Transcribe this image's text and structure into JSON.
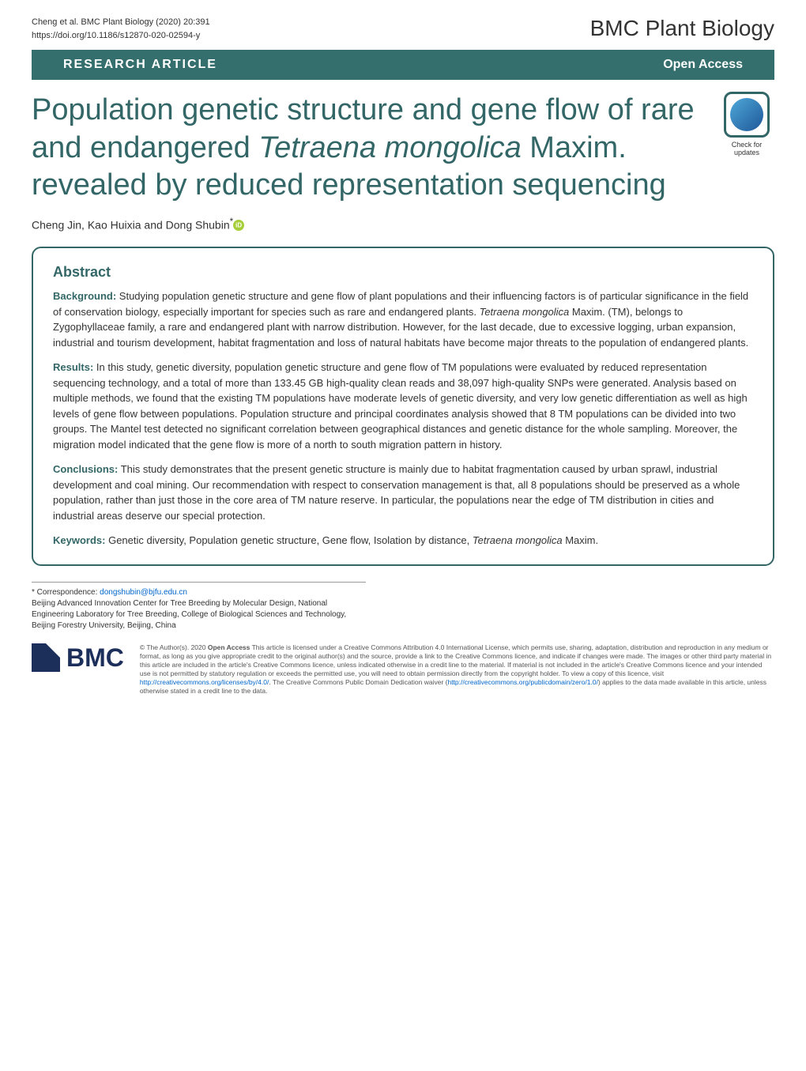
{
  "header": {
    "citation_line1": "Cheng et al. BMC Plant Biology        (2020) 20:391",
    "citation_line2": "https://doi.org/10.1186/s12870-020-02594-y",
    "journal_name": "BMC Plant Biology"
  },
  "article_type_bar": {
    "type": "RESEARCH ARTICLE",
    "access": "Open Access"
  },
  "title": {
    "text_parts": {
      "p1": "Population genetic structure and gene flow of rare and endangered ",
      "em1": "Tetraena mongolica",
      "p2": " Maxim. revealed by reduced representation sequencing"
    }
  },
  "check_updates": {
    "label": "Check for updates"
  },
  "authors": {
    "text": "Cheng Jin, Kao Huixia and Dong Shubin",
    "corresponding_marker": "*"
  },
  "abstract": {
    "heading": "Abstract",
    "background": {
      "label": "Background:",
      "p1": " Studying population genetic structure and gene flow of plant populations and their influencing factors is of particular significance in the field of conservation biology, especially important for species such as rare and endangered plants. ",
      "em1": "Tetraena mongolica",
      "p2": " Maxim. (TM), belongs to Zygophyllaceae family, a rare and endangered plant with narrow distribution. However, for the last decade, due to excessive logging, urban expansion, industrial and tourism development, habitat fragmentation and loss of natural habitats have become major threats to the population of endangered plants."
    },
    "results": {
      "label": "Results:",
      "text": " In this study, genetic diversity, population genetic structure and gene flow of TM populations were evaluated by reduced representation sequencing technology, and a total of more than 133.45 GB high-quality clean reads and 38,097 high-quality SNPs were generated. Analysis based on multiple methods, we found that the existing TM populations have moderate levels of genetic diversity, and very low genetic differentiation as well as high levels of gene flow between populations. Population structure and principal coordinates analysis showed that 8 TM populations can be divided into two groups. The Mantel test detected no significant correlation between geographical distances and genetic distance for the whole sampling. Moreover, the migration model indicated that the gene flow is more of a north to south migration pattern in history."
    },
    "conclusions": {
      "label": "Conclusions:",
      "text": " This study demonstrates that the present genetic structure is mainly due to habitat fragmentation caused by urban sprawl, industrial development and coal mining. Our recommendation with respect to conservation management is that, all 8 populations should be preserved as a whole population, rather than just those in the core area of TM nature reserve. In particular, the populations near the edge of TM distribution in cities and industrial areas deserve our special protection."
    },
    "keywords": {
      "label": "Keywords:",
      "p1": " Genetic diversity, Population genetic structure, Gene flow, Isolation by distance, ",
      "em1": "Tetraena mongolica",
      "p2": " Maxim."
    }
  },
  "footer": {
    "correspondence": {
      "label": "* Correspondence: ",
      "email": "dongshubin@bjfu.edu.cn",
      "affiliation": "Beijing Advanced Innovation Center for Tree Breeding by Molecular Design, National Engineering Laboratory for Tree Breeding, College of Biological Sciences and Technology, Beijing Forestry University, Beijing, China"
    },
    "bmc_logo": {
      "text": "BMC"
    },
    "license": {
      "p1": "© The Author(s). 2020 ",
      "bold1": "Open Access",
      "p2": " This article is licensed under a Creative Commons Attribution 4.0 International License, which permits use, sharing, adaptation, distribution and reproduction in any medium or format, as long as you give appropriate credit to the original author(s) and the source, provide a link to the Creative Commons licence, and indicate if changes were made. The images or other third party material in this article are included in the article's Creative Commons licence, unless indicated otherwise in a credit line to the material. If material is not included in the article's Creative Commons licence and your intended use is not permitted by statutory regulation or exceeds the permitted use, you will need to obtain permission directly from the copyright holder. To view a copy of this licence, visit ",
      "link1": "http://creativecommons.org/licenses/by/4.0/",
      "p3": ". The Creative Commons Public Domain Dedication waiver (",
      "link2": "http://creativecommons.org/publicdomain/zero/1.0/",
      "p4": ") applies to the data made available in this article, unless otherwise stated in a credit line to the data."
    }
  },
  "colors": {
    "primary": "#336666",
    "bar_bg": "#346e6d",
    "bmc_blue": "#1c2e5a",
    "link": "#0066cc",
    "orcid": "#a6ce39"
  },
  "typography": {
    "title_fontsize": 38,
    "journal_fontsize": 28,
    "abstract_heading_fontsize": 18,
    "body_fontsize": 13,
    "citation_fontsize": 11
  }
}
